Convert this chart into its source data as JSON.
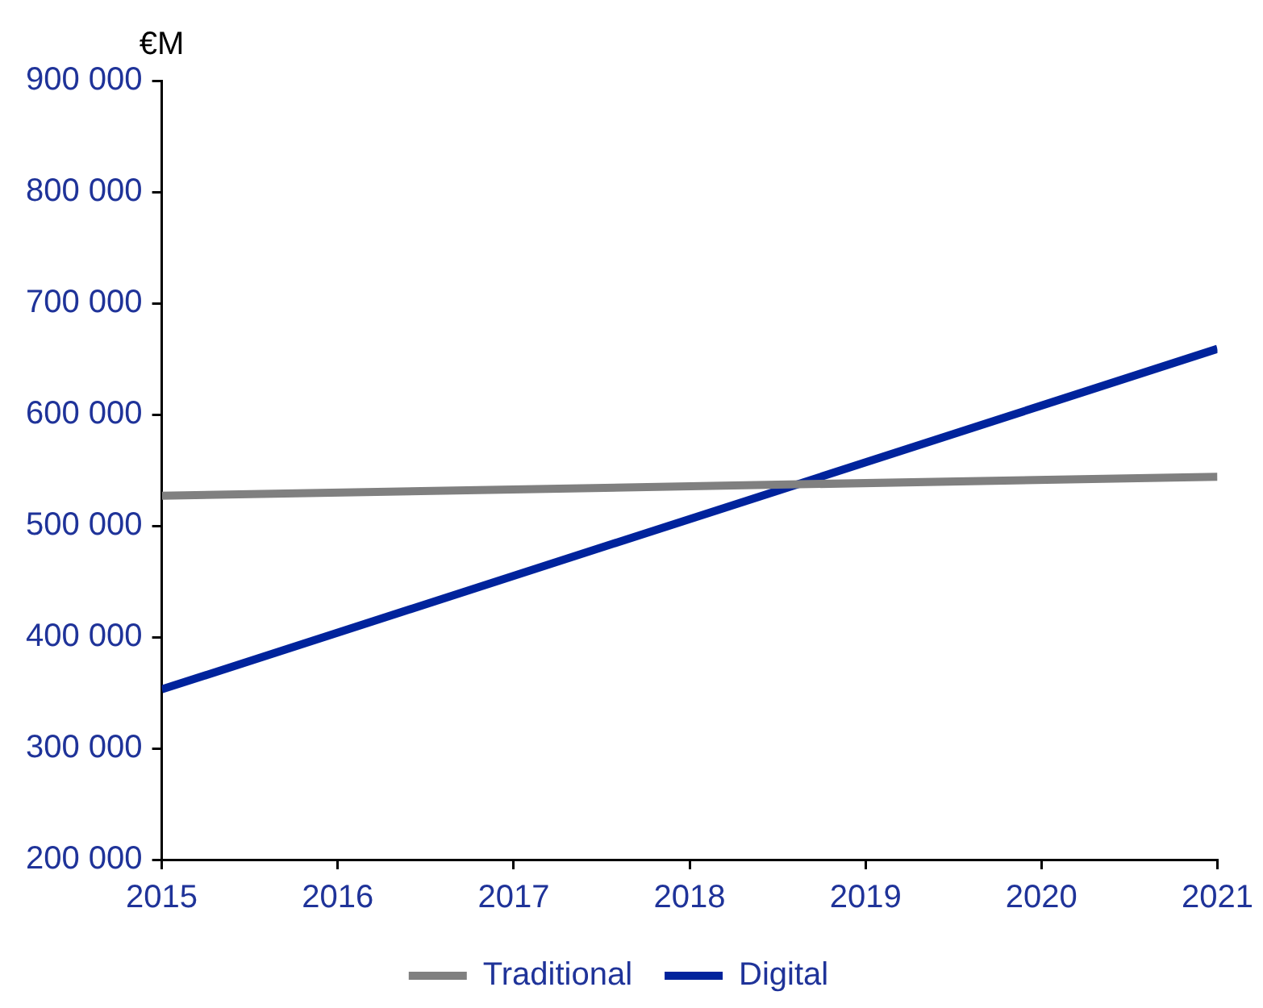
{
  "chart_data": {
    "type": "line",
    "ylabel": "€M",
    "x": [
      2015,
      2021
    ],
    "series": [
      {
        "name": "Traditional",
        "color": "#808080",
        "values": [
          527000,
          544000
        ]
      },
      {
        "name": "Digital",
        "color": "#00239c",
        "values": [
          353000,
          659000
        ]
      }
    ],
    "xlim": [
      2015,
      2021
    ],
    "xticks": [
      2015,
      2016,
      2017,
      2018,
      2019,
      2020,
      2021
    ],
    "ylim": [
      200000,
      900000
    ],
    "yticks": [
      {
        "value": 200000,
        "label": "200 000"
      },
      {
        "value": 300000,
        "label": "300 000"
      },
      {
        "value": 400000,
        "label": "400 000"
      },
      {
        "value": 500000,
        "label": "500 000"
      },
      {
        "value": 600000,
        "label": "600 000"
      },
      {
        "value": 700000,
        "label": "700 000"
      },
      {
        "value": 800000,
        "label": "800 000"
      },
      {
        "value": 900000,
        "label": "900 000"
      }
    ],
    "grid": false,
    "legend": "bottom",
    "marker": "none",
    "line_style": "solid"
  }
}
